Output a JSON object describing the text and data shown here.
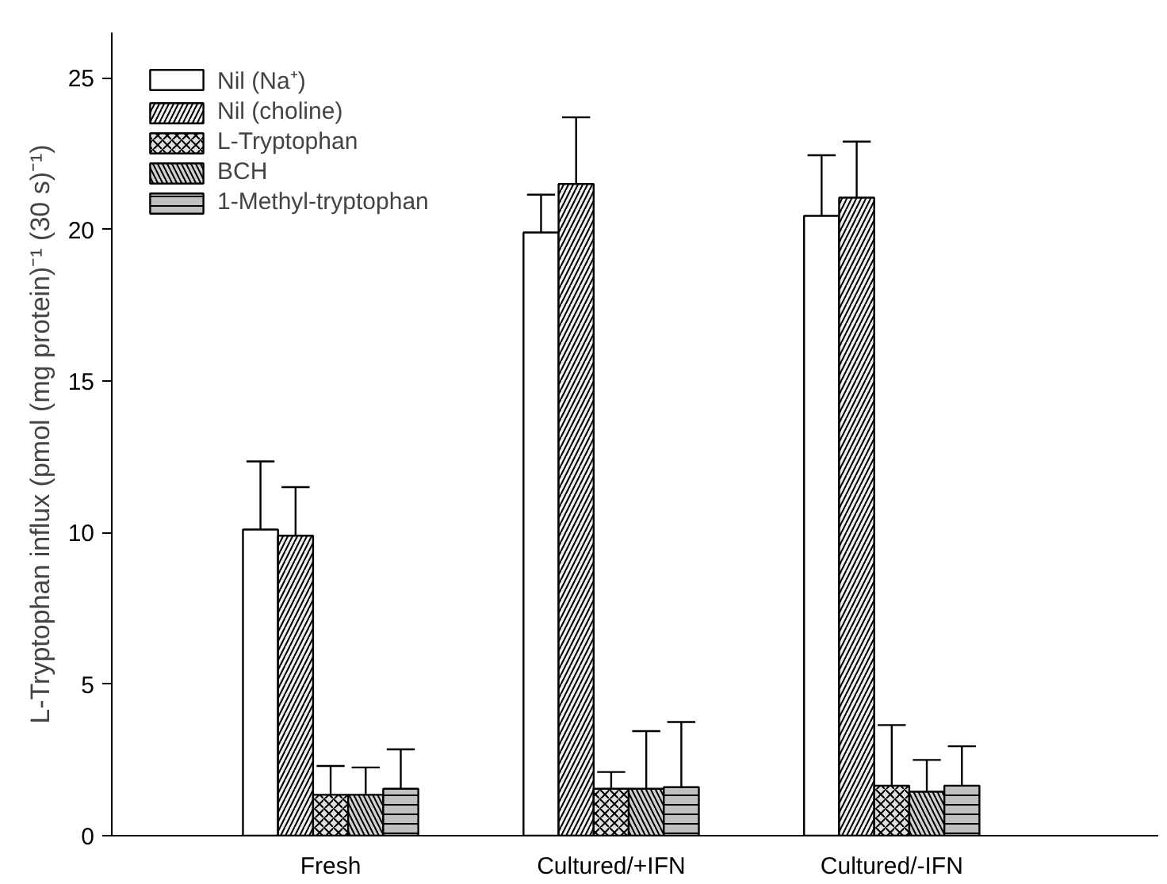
{
  "chart_data": {
    "type": "bar",
    "categories": [
      "Fresh",
      "Cultured/+IFN",
      "Cultured/-IFN"
    ],
    "ylabel": "L-Tryptophan influx (pmol (mg protein)⁻¹ (30 s)⁻¹)",
    "ylim": [
      0,
      26.5
    ],
    "yticks": [
      0,
      5,
      10,
      15,
      20,
      25
    ],
    "grid": false,
    "legend": "top left",
    "series": [
      {
        "name": "Nil (Na⁺)",
        "color": "#ffffff",
        "values": [
          10.1,
          19.9,
          20.45
        ],
        "errors": [
          [
            10.1,
            12.35
          ],
          [
            19.9,
            21.15
          ],
          [
            20.45,
            22.45
          ]
        ]
      },
      {
        "name": "Nil (choline)",
        "color": "#f0f0f0",
        "values": [
          9.9,
          21.5,
          21.05
        ],
        "errors": [
          [
            9.9,
            11.5
          ],
          [
            21.5,
            23.7
          ],
          [
            21.05,
            22.9
          ]
        ]
      },
      {
        "name": "L-Tryptophan",
        "color": "#e0e0e0",
        "values": [
          1.35,
          1.55,
          1.65
        ],
        "errors": [
          [
            1.35,
            2.3
          ],
          [
            1.55,
            2.1
          ],
          [
            1.65,
            3.65
          ]
        ]
      },
      {
        "name": "BCH",
        "color": "#d0d0d0",
        "values": [
          1.35,
          1.55,
          1.45
        ],
        "errors": [
          [
            1.35,
            2.25
          ],
          [
            1.55,
            3.45
          ],
          [
            1.45,
            2.5
          ]
        ]
      },
      {
        "name": "1-Methyl-tryptophan",
        "color": "#c0c0c0",
        "values": [
          1.55,
          1.6,
          1.65
        ],
        "errors": [
          [
            1.55,
            2.85
          ],
          [
            1.6,
            3.75
          ],
          [
            1.65,
            2.95
          ]
        ]
      }
    ]
  }
}
